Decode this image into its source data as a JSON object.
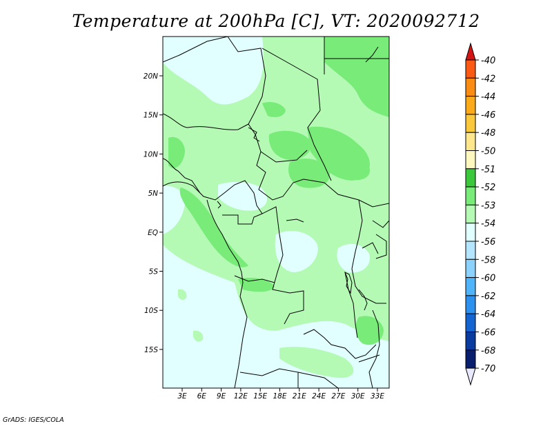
{
  "title": "Temperature at 200hPa [C], VT: 2020092712",
  "credit": "GrADS: IGES/COLA",
  "lat_labels": [
    "20N",
    "15N",
    "10N",
    "5N",
    "EQ",
    "5S",
    "10S",
    "15S"
  ],
  "lon_labels": [
    "3E",
    "6E",
    "9E",
    "12E",
    "15E",
    "18E",
    "21E",
    "24E",
    "27E",
    "30E",
    "33E"
  ],
  "colorbar": {
    "labels": [
      "-40",
      "-42",
      "-44",
      "-46",
      "-48",
      "-50",
      "-51",
      "-52",
      "-53",
      "-54",
      "-56",
      "-58",
      "-60",
      "-62",
      "-64",
      "-66",
      "-68",
      "-70"
    ],
    "colors": [
      "#f0231e",
      "#fa5a14",
      "#fa8c14",
      "#fbaa19",
      "#fbc83c",
      "#fde68c",
      "#fff8be",
      "#3cc83c",
      "#78eb78",
      "#b4fab4",
      "#e1ffff",
      "#b4e6ff",
      "#8cd2ff",
      "#50b4fa",
      "#2d91f0",
      "#1464d2",
      "#0a3ca0",
      "#0a1e6e"
    ],
    "top_arrow_color": "#d21414",
    "bottom_arrow_color": "#e8e8ff"
  },
  "fill_colors": {
    "lightest": "#e1ffff",
    "light_green": "#b4fab4",
    "mid_green": "#78eb78"
  }
}
